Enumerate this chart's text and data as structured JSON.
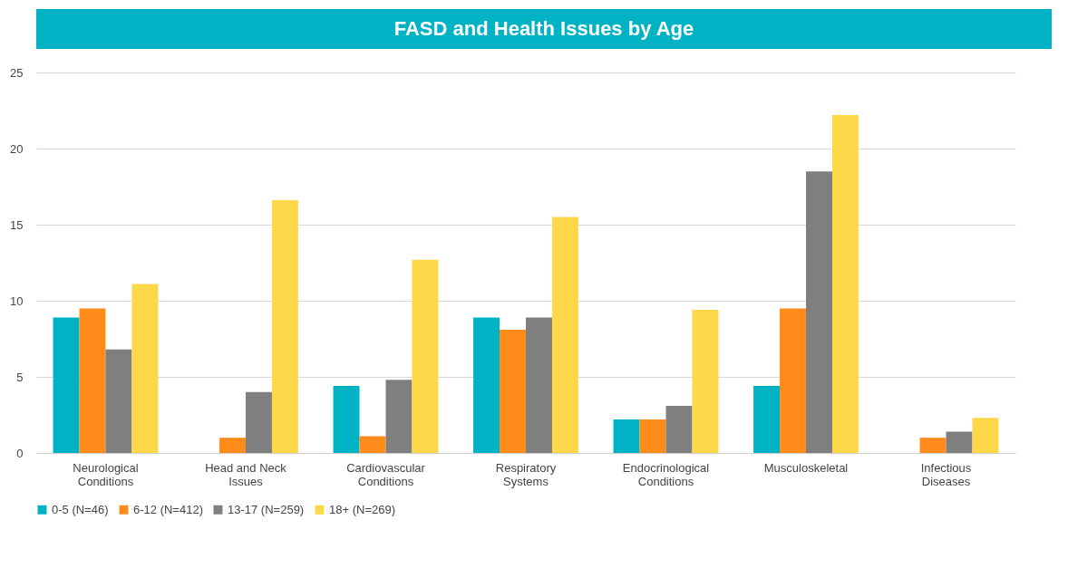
{
  "chart_data": {
    "type": "bar",
    "title": "FASD and Health Issues by Age",
    "categories": [
      "Neurological Conditions",
      "Head and Neck Issues",
      "Cardiovascular Conditions",
      "Respiratory Systems",
      "Endocrinological Conditions",
      "Musculoskeletal",
      "Infectious Diseases"
    ],
    "series": [
      {
        "name": "0-5 (N=46)",
        "color": "#00b3c4",
        "values": [
          8.9,
          0,
          4.4,
          8.9,
          2.2,
          4.4,
          0
        ]
      },
      {
        "name": "6-12 (N=412)",
        "color": "#ff8c1a",
        "values": [
          9.5,
          1.0,
          1.1,
          8.1,
          2.2,
          9.5,
          1.0
        ]
      },
      {
        "name": "13-17 (N=259)",
        "color": "#7f7f7f",
        "values": [
          6.8,
          4.0,
          4.8,
          8.9,
          3.1,
          18.5,
          1.4
        ]
      },
      {
        "name": "18+ (N=269)",
        "color": "#ffd84a",
        "values": [
          11.1,
          16.6,
          12.7,
          15.5,
          9.4,
          22.2,
          2.3
        ]
      }
    ],
    "ylim": [
      0,
      25
    ],
    "yticks": [
      0,
      5,
      10,
      15,
      20,
      25
    ],
    "grid": "y",
    "legend": "bottom"
  }
}
